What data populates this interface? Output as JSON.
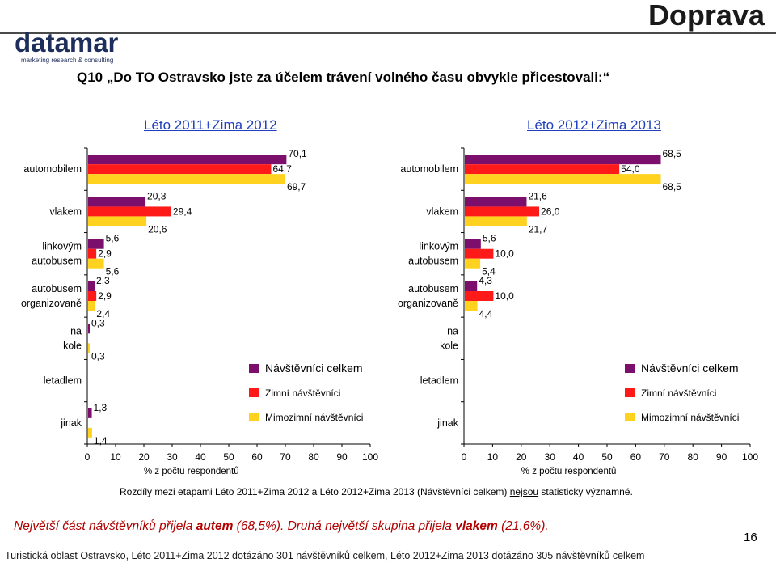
{
  "header": {
    "title": "Doprava"
  },
  "logo": {
    "name": "datamar",
    "tagline": "marketing research & consulting"
  },
  "question": "Q10 „Do TO Ostravsko jste za účelem trávení volného času obvykle přicestovali:“",
  "note": {
    "pre": "Rozdíly mezi etapami Léto 2011+Zima 2012 a Léto 2012+Zima 2013 (Návštěvníci celkem) ",
    "emph": "nejsou",
    "post": " statisticky významné."
  },
  "summary": {
    "part1": "Největší část návštěvníků přijela ",
    "bold1": "autem",
    "part2": " (68,5%). Druhá největší skupina přijela ",
    "bold2": "vlakem",
    "part3": " (21,6%)."
  },
  "page_number": "16",
  "footer": "Turistická oblast Ostravsko, Léto 2011+Zima 2012 dotázáno 301 návštěvníků celkem,  Léto 2012+Zima 2013 dotázáno 305 návštěvníků celkem",
  "colors": {
    "celkem": "#7b0f6b",
    "zimni": "#ff1a1a",
    "mimozimni": "#ffd21f"
  },
  "chart_data": [
    {
      "type": "bar",
      "orientation": "horizontal",
      "title": "Léto 2011+Zima 2012",
      "xlabel": "% z počtu respondentů",
      "xlim": [
        0,
        100
      ],
      "xticks": [
        "0",
        "10",
        "20",
        "30",
        "40",
        "50",
        "60",
        "70",
        "80",
        "90",
        "100"
      ],
      "categories": [
        "automobilem",
        "vlakem",
        "linkovým autobusem",
        "autobusem organizovaně",
        "na kole",
        "letadlem",
        "jinak"
      ],
      "series": [
        {
          "name": "Návštěvníci celkem",
          "values": [
            70.1,
            20.3,
            5.6,
            2.3,
            0.3,
            null,
            1.3
          ],
          "labels": [
            "70,1",
            "20,3",
            "5,6",
            "2,3",
            "0,3",
            "",
            "1,3"
          ]
        },
        {
          "name": "Zimní návštěvníci",
          "values": [
            64.7,
            29.4,
            2.9,
            2.9,
            null,
            null,
            null
          ],
          "labels": [
            "64,7",
            "29,4",
            "2,9",
            "2,9",
            "",
            "",
            ""
          ]
        },
        {
          "name": "Mimozimní návštěvníci",
          "values": [
            69.7,
            20.6,
            5.6,
            2.4,
            0.3,
            null,
            1.4
          ],
          "labels": [
            "69,7",
            "20,6",
            "5,6",
            "2,4",
            "0,3",
            "",
            "1,4"
          ]
        }
      ],
      "legend": "bottom-right"
    },
    {
      "type": "bar",
      "orientation": "horizontal",
      "title": "Léto 2012+Zima 2013",
      "xlabel": "% z počtu respondentů",
      "xlim": [
        0,
        100
      ],
      "xticks": [
        "0",
        "10",
        "20",
        "30",
        "40",
        "50",
        "60",
        "70",
        "80",
        "90",
        "100"
      ],
      "categories": [
        "automobilem",
        "vlakem",
        "linkovým autobusem",
        "autobusem organizovaně",
        "na kole",
        "letadlem",
        "jinak"
      ],
      "series": [
        {
          "name": "Návštěvníci celkem",
          "values": [
            68.5,
            21.6,
            5.6,
            4.3,
            null,
            null,
            null
          ],
          "labels": [
            "68,5",
            "21,6",
            "5,6",
            "4,3",
            "",
            "",
            ""
          ]
        },
        {
          "name": "Zimní návštěvníci",
          "values": [
            54.0,
            26.0,
            10.0,
            10.0,
            null,
            null,
            null
          ],
          "labels": [
            "54,0",
            "26,0",
            "10,0",
            "10,0",
            "",
            "",
            ""
          ]
        },
        {
          "name": "Mimozimní návštěvníci",
          "values": [
            68.5,
            21.7,
            5.4,
            4.4,
            null,
            null,
            null
          ],
          "labels": [
            "68,5",
            "21,7",
            "5,4",
            "4,4",
            "",
            "",
            ""
          ]
        }
      ],
      "legend": "bottom-right"
    }
  ]
}
